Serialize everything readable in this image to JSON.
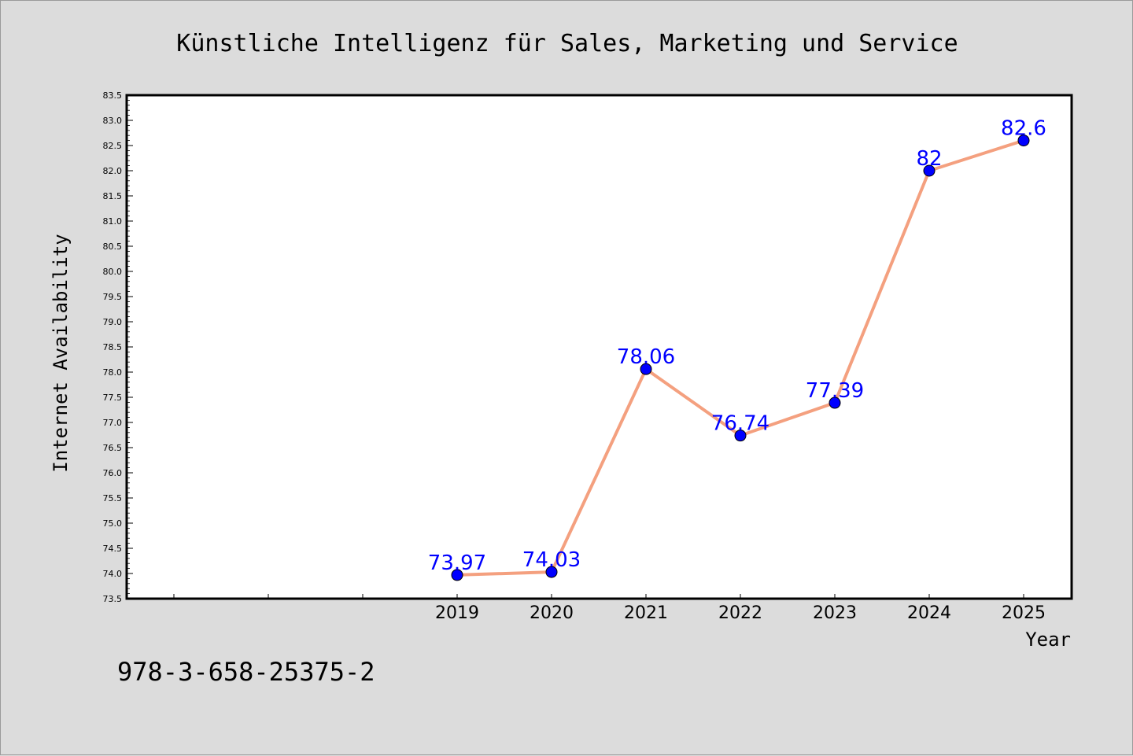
{
  "chart_data": {
    "type": "line",
    "title": "Künstliche Intelligenz für Sales, Marketing und Service",
    "xlabel": "Year",
    "ylabel": "Internet Availability",
    "x": [
      "2019",
      "2020",
      "2021",
      "2022",
      "2023",
      "2024",
      "2025"
    ],
    "series": [
      {
        "values": [
          73.97,
          74.03,
          78.06,
          76.74,
          77.39,
          82,
          82.6
        ],
        "data_labels": [
          "73.97",
          "74.03",
          "78.06",
          "76.74",
          "77.39",
          "82",
          "82.6"
        ],
        "line_color": "#f4a07f",
        "marker_color": "#0000ff"
      }
    ],
    "ylim": [
      73.5,
      83.5
    ],
    "yticks": [
      "73.5",
      "74.0",
      "74.5",
      "75.0",
      "75.5",
      "76.0",
      "76.5",
      "77.0",
      "77.5",
      "78.0",
      "78.5",
      "79.0",
      "79.5",
      "80.0",
      "80.5",
      "81.0",
      "81.5",
      "82.0",
      "82.5",
      "83.0",
      "83.5"
    ],
    "grid": false,
    "legend": "none"
  },
  "footer": {
    "isbn": "978-3-658-25375-2"
  },
  "colors": {
    "background": "#dcdcdc",
    "plot_background": "#ffffff",
    "line": "#f4a07f",
    "marker": "#0000ff",
    "data_label": "#0000ff"
  }
}
